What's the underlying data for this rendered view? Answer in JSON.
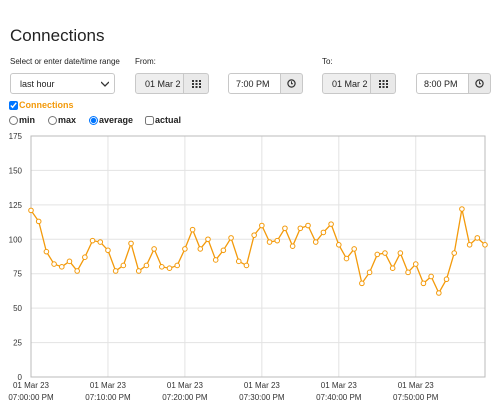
{
  "header": {
    "title": "Connections"
  },
  "controls": {
    "range_label": "Select or enter date/time range",
    "range_value": "last hour",
    "from_label": "From:",
    "from_date": "01 Mar 2",
    "from_time": "7:00 PM",
    "to_label": "To:",
    "to_date": "01 Mar 2",
    "to_time": "8:00 PM"
  },
  "display_options": {
    "names": [
      "min",
      "max",
      "average",
      "actual"
    ],
    "selected": "average"
  },
  "chart_data": {
    "type": "line",
    "x": [
      0,
      1,
      2,
      3,
      4,
      5,
      6,
      7,
      8,
      9,
      10,
      11,
      12,
      13,
      14,
      15,
      16,
      17,
      18,
      19,
      20,
      21,
      22,
      23,
      24,
      25,
      26,
      27,
      28,
      29,
      30,
      31,
      32,
      33,
      34,
      35,
      36,
      37,
      38,
      39,
      40,
      41,
      42,
      43,
      44,
      45,
      46,
      47,
      48,
      49,
      50,
      51,
      52,
      53,
      54,
      55,
      56,
      57,
      58,
      59
    ],
    "series": [
      {
        "name": "Connections",
        "color": "#f39a0b",
        "values": [
          121,
          113,
          91,
          82,
          80,
          84,
          77,
          87,
          99,
          98,
          92,
          77,
          81,
          97,
          77,
          81,
          93,
          80,
          79,
          81,
          93,
          107,
          93,
          100,
          85,
          92,
          101,
          84,
          81,
          103,
          110,
          98,
          99,
          108,
          95,
          108,
          110,
          98,
          105,
          111,
          96,
          86,
          93,
          68,
          76,
          89,
          90,
          79,
          90,
          76,
          82,
          68,
          73,
          61,
          71,
          90,
          122,
          96,
          101,
          96
        ]
      }
    ],
    "xlim": [
      0,
      59
    ],
    "xticks": [
      {
        "value": 0,
        "label": [
          "01 Mar 23",
          "07:00:00 PM"
        ]
      },
      {
        "value": 10,
        "label": [
          "01 Mar 23",
          "07:10:00 PM"
        ]
      },
      {
        "value": 20,
        "label": [
          "01 Mar 23",
          "07:20:00 PM"
        ]
      },
      {
        "value": 30,
        "label": [
          "01 Mar 23",
          "07:30:00 PM"
        ]
      },
      {
        "value": 40,
        "label": [
          "01 Mar 23",
          "07:40:00 PM"
        ]
      },
      {
        "value": 50,
        "label": [
          "01 Mar 23",
          "07:50:00 PM"
        ]
      }
    ],
    "ylim": [
      0,
      175
    ],
    "yticks": [
      0,
      25,
      50,
      75,
      100,
      125,
      150,
      175
    ],
    "grid": true
  }
}
